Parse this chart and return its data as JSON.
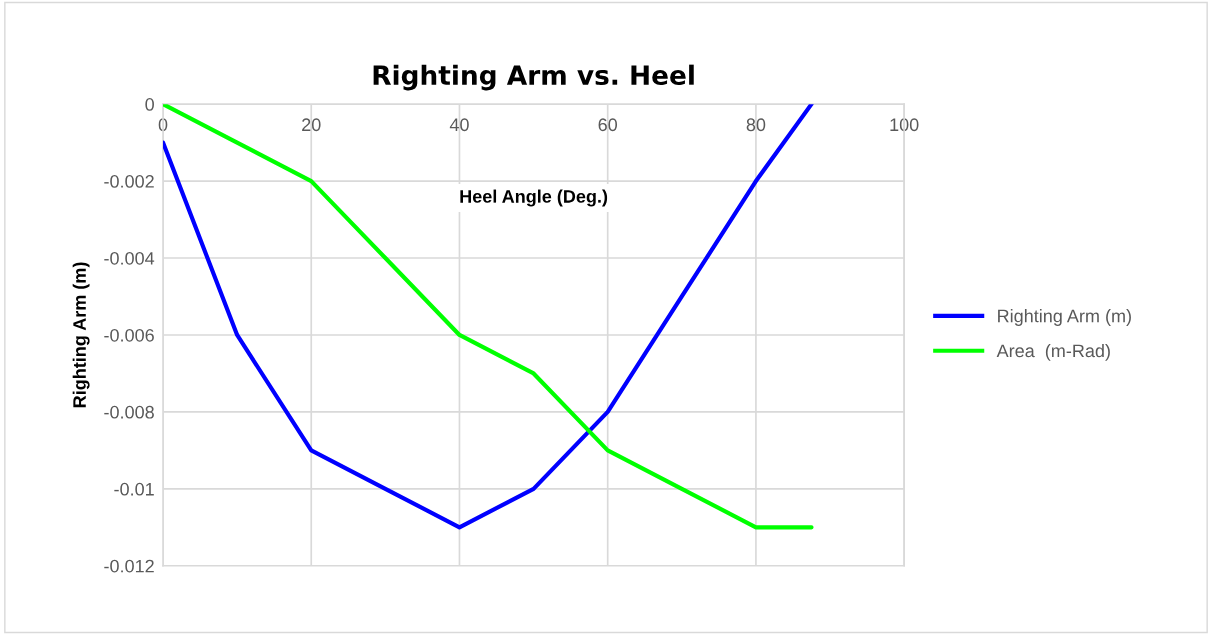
{
  "chart_data": {
    "type": "line",
    "title": "Righting Arm vs. Heel",
    "xlabel": "Heel Angle (Deg.)",
    "ylabel": "Righting Arm (m)",
    "x": [
      0,
      10,
      20,
      30,
      40,
      50,
      60,
      70,
      80,
      87.5
    ],
    "series": [
      {
        "name": "Righting Arm (m)",
        "color": "#0000ff",
        "values": [
          -0.001,
          -0.006,
          -0.009,
          -0.01,
          -0.011,
          -0.01,
          -0.008,
          -0.005,
          -0.002,
          0
        ]
      },
      {
        "name": "Area  (m-Rad)",
        "color": "#00ff00",
        "values": [
          0,
          -0.001,
          -0.002,
          -0.004,
          -0.006,
          -0.007,
          -0.009,
          -0.01,
          -0.011,
          -0.011
        ]
      }
    ],
    "xlim": [
      0,
      100
    ],
    "xticks": [
      0,
      20,
      40,
      60,
      80,
      100
    ],
    "ylim": [
      -0.012,
      0
    ],
    "yticks": [
      {
        "value": -0.012,
        "label": "-0.012"
      },
      {
        "value": -0.01,
        "label": "-0.01"
      },
      {
        "value": -0.008,
        "label": "-0.008"
      },
      {
        "value": -0.006,
        "label": "-0.006"
      },
      {
        "value": -0.004,
        "label": "-0.004"
      },
      {
        "value": -0.002,
        "label": "-0.002"
      },
      {
        "value": 0,
        "label": "0"
      }
    ],
    "grid": true,
    "legend": "right",
    "marker": "none",
    "line_style": "solid"
  }
}
